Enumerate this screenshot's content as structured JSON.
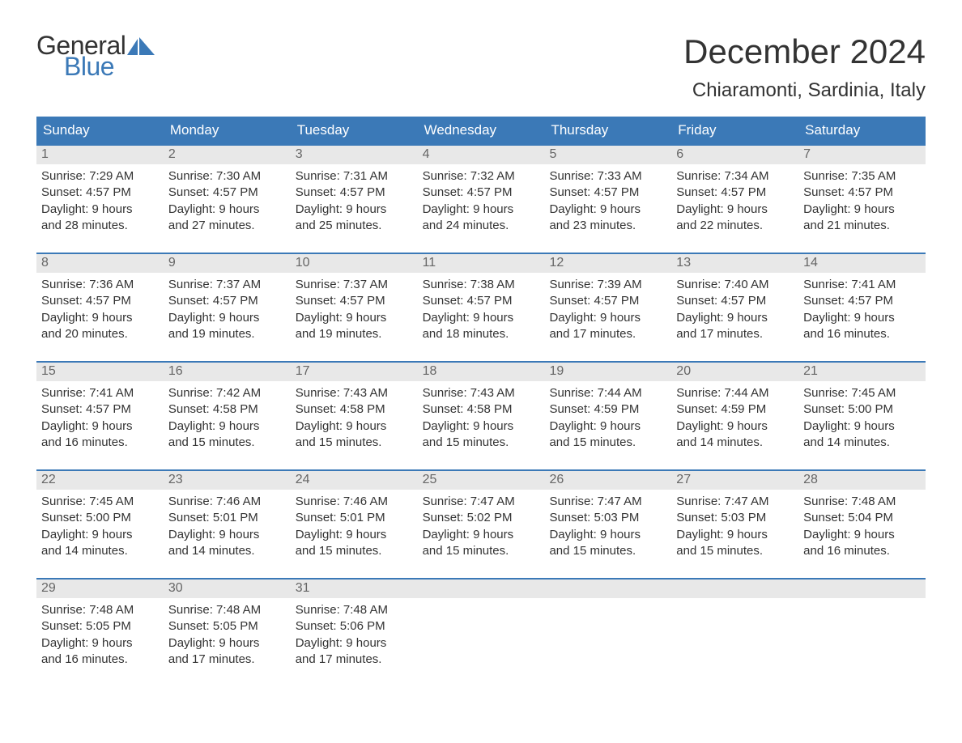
{
  "brand": {
    "word1": "General",
    "word2": "Blue",
    "text_color": "#333333",
    "accent_color": "#3b79b7"
  },
  "header": {
    "month_title": "December 2024",
    "location": "Chiaramonti, Sardinia, Italy"
  },
  "colors": {
    "header_row_bg": "#3b79b7",
    "header_row_text": "#ffffff",
    "daynum_bg": "#e8e8e8",
    "daynum_text": "#666666",
    "body_text": "#333333",
    "week_divider": "#3b79b7",
    "page_bg": "#ffffff"
  },
  "typography": {
    "month_title_fontsize": 42,
    "location_fontsize": 24,
    "dayheader_fontsize": 17,
    "daynum_fontsize": 16,
    "body_fontsize": 15,
    "logo_fontsize": 32
  },
  "day_names": [
    "Sunday",
    "Monday",
    "Tuesday",
    "Wednesday",
    "Thursday",
    "Friday",
    "Saturday"
  ],
  "weeks": [
    [
      {
        "num": "1",
        "sunrise": "Sunrise: 7:29 AM",
        "sunset": "Sunset: 4:57 PM",
        "daylight": "Daylight: 9 hours\nand 28 minutes."
      },
      {
        "num": "2",
        "sunrise": "Sunrise: 7:30 AM",
        "sunset": "Sunset: 4:57 PM",
        "daylight": "Daylight: 9 hours\nand 27 minutes."
      },
      {
        "num": "3",
        "sunrise": "Sunrise: 7:31 AM",
        "sunset": "Sunset: 4:57 PM",
        "daylight": "Daylight: 9 hours\nand 25 minutes."
      },
      {
        "num": "4",
        "sunrise": "Sunrise: 7:32 AM",
        "sunset": "Sunset: 4:57 PM",
        "daylight": "Daylight: 9 hours\nand 24 minutes."
      },
      {
        "num": "5",
        "sunrise": "Sunrise: 7:33 AM",
        "sunset": "Sunset: 4:57 PM",
        "daylight": "Daylight: 9 hours\nand 23 minutes."
      },
      {
        "num": "6",
        "sunrise": "Sunrise: 7:34 AM",
        "sunset": "Sunset: 4:57 PM",
        "daylight": "Daylight: 9 hours\nand 22 minutes."
      },
      {
        "num": "7",
        "sunrise": "Sunrise: 7:35 AM",
        "sunset": "Sunset: 4:57 PM",
        "daylight": "Daylight: 9 hours\nand 21 minutes."
      }
    ],
    [
      {
        "num": "8",
        "sunrise": "Sunrise: 7:36 AM",
        "sunset": "Sunset: 4:57 PM",
        "daylight": "Daylight: 9 hours\nand 20 minutes."
      },
      {
        "num": "9",
        "sunrise": "Sunrise: 7:37 AM",
        "sunset": "Sunset: 4:57 PM",
        "daylight": "Daylight: 9 hours\nand 19 minutes."
      },
      {
        "num": "10",
        "sunrise": "Sunrise: 7:37 AM",
        "sunset": "Sunset: 4:57 PM",
        "daylight": "Daylight: 9 hours\nand 19 minutes."
      },
      {
        "num": "11",
        "sunrise": "Sunrise: 7:38 AM",
        "sunset": "Sunset: 4:57 PM",
        "daylight": "Daylight: 9 hours\nand 18 minutes."
      },
      {
        "num": "12",
        "sunrise": "Sunrise: 7:39 AM",
        "sunset": "Sunset: 4:57 PM",
        "daylight": "Daylight: 9 hours\nand 17 minutes."
      },
      {
        "num": "13",
        "sunrise": "Sunrise: 7:40 AM",
        "sunset": "Sunset: 4:57 PM",
        "daylight": "Daylight: 9 hours\nand 17 minutes."
      },
      {
        "num": "14",
        "sunrise": "Sunrise: 7:41 AM",
        "sunset": "Sunset: 4:57 PM",
        "daylight": "Daylight: 9 hours\nand 16 minutes."
      }
    ],
    [
      {
        "num": "15",
        "sunrise": "Sunrise: 7:41 AM",
        "sunset": "Sunset: 4:57 PM",
        "daylight": "Daylight: 9 hours\nand 16 minutes."
      },
      {
        "num": "16",
        "sunrise": "Sunrise: 7:42 AM",
        "sunset": "Sunset: 4:58 PM",
        "daylight": "Daylight: 9 hours\nand 15 minutes."
      },
      {
        "num": "17",
        "sunrise": "Sunrise: 7:43 AM",
        "sunset": "Sunset: 4:58 PM",
        "daylight": "Daylight: 9 hours\nand 15 minutes."
      },
      {
        "num": "18",
        "sunrise": "Sunrise: 7:43 AM",
        "sunset": "Sunset: 4:58 PM",
        "daylight": "Daylight: 9 hours\nand 15 minutes."
      },
      {
        "num": "19",
        "sunrise": "Sunrise: 7:44 AM",
        "sunset": "Sunset: 4:59 PM",
        "daylight": "Daylight: 9 hours\nand 15 minutes."
      },
      {
        "num": "20",
        "sunrise": "Sunrise: 7:44 AM",
        "sunset": "Sunset: 4:59 PM",
        "daylight": "Daylight: 9 hours\nand 14 minutes."
      },
      {
        "num": "21",
        "sunrise": "Sunrise: 7:45 AM",
        "sunset": "Sunset: 5:00 PM",
        "daylight": "Daylight: 9 hours\nand 14 minutes."
      }
    ],
    [
      {
        "num": "22",
        "sunrise": "Sunrise: 7:45 AM",
        "sunset": "Sunset: 5:00 PM",
        "daylight": "Daylight: 9 hours\nand 14 minutes."
      },
      {
        "num": "23",
        "sunrise": "Sunrise: 7:46 AM",
        "sunset": "Sunset: 5:01 PM",
        "daylight": "Daylight: 9 hours\nand 14 minutes."
      },
      {
        "num": "24",
        "sunrise": "Sunrise: 7:46 AM",
        "sunset": "Sunset: 5:01 PM",
        "daylight": "Daylight: 9 hours\nand 15 minutes."
      },
      {
        "num": "25",
        "sunrise": "Sunrise: 7:47 AM",
        "sunset": "Sunset: 5:02 PM",
        "daylight": "Daylight: 9 hours\nand 15 minutes."
      },
      {
        "num": "26",
        "sunrise": "Sunrise: 7:47 AM",
        "sunset": "Sunset: 5:03 PM",
        "daylight": "Daylight: 9 hours\nand 15 minutes."
      },
      {
        "num": "27",
        "sunrise": "Sunrise: 7:47 AM",
        "sunset": "Sunset: 5:03 PM",
        "daylight": "Daylight: 9 hours\nand 15 minutes."
      },
      {
        "num": "28",
        "sunrise": "Sunrise: 7:48 AM",
        "sunset": "Sunset: 5:04 PM",
        "daylight": "Daylight: 9 hours\nand 16 minutes."
      }
    ],
    [
      {
        "num": "29",
        "sunrise": "Sunrise: 7:48 AM",
        "sunset": "Sunset: 5:05 PM",
        "daylight": "Daylight: 9 hours\nand 16 minutes."
      },
      {
        "num": "30",
        "sunrise": "Sunrise: 7:48 AM",
        "sunset": "Sunset: 5:05 PM",
        "daylight": "Daylight: 9 hours\nand 17 minutes."
      },
      {
        "num": "31",
        "sunrise": "Sunrise: 7:48 AM",
        "sunset": "Sunset: 5:06 PM",
        "daylight": "Daylight: 9 hours\nand 17 minutes."
      },
      null,
      null,
      null,
      null
    ]
  ]
}
